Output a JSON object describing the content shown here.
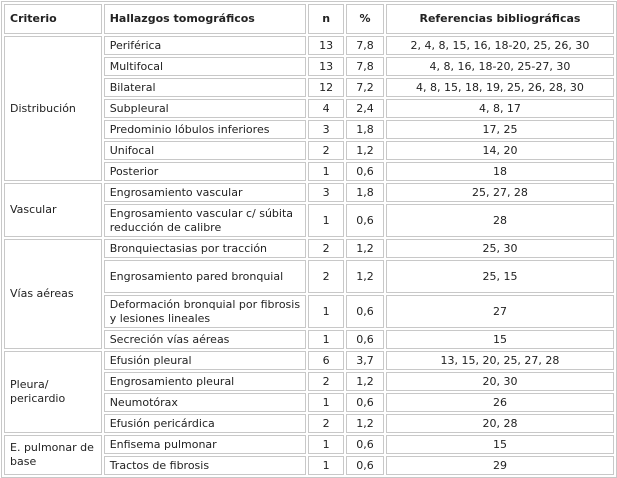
{
  "headers": {
    "criterio": "Criterio",
    "hallazgos": "Hallazgos tomográficos",
    "n": "n",
    "pct": "%",
    "refs": "Referencias bibliográficas"
  },
  "groups": [
    {
      "criterio": "Distribución",
      "rows": [
        {
          "hallazgo": "Periférica",
          "n": "13",
          "pct": "7,8",
          "refs": "2, 4, 8, 15, 16, 18-20, 25, 26, 30"
        },
        {
          "hallazgo": "Multifocal",
          "n": "13",
          "pct": "7,8",
          "refs": "4, 8, 16, 18-20, 25-27, 30"
        },
        {
          "hallazgo": "Bilateral",
          "n": "12",
          "pct": "7,2",
          "refs": "4, 8, 15, 18, 19, 25, 26, 28, 30"
        },
        {
          "hallazgo": "Subpleural",
          "n": "4",
          "pct": "2,4",
          "refs": "4, 8, 17"
        },
        {
          "hallazgo": "Predominio lóbulos inferiores",
          "n": "3",
          "pct": "1,8",
          "refs": "17, 25"
        },
        {
          "hallazgo": "Unifocal",
          "n": "2",
          "pct": "1,2",
          "refs": "14, 20"
        },
        {
          "hallazgo": "Posterior",
          "n": "1",
          "pct": "0,6",
          "refs": "18"
        }
      ]
    },
    {
      "criterio": "Vascular",
      "rows": [
        {
          "hallazgo": "Engrosamiento vascular",
          "n": "3",
          "pct": "1,8",
          "refs": "25, 27, 28"
        },
        {
          "hallazgo": "Engrosamiento vascular c/ súbita reducción de calibre",
          "n": "1",
          "pct": "0,6",
          "refs": "28",
          "two": true
        }
      ]
    },
    {
      "criterio": "Vías aéreas",
      "rows": [
        {
          "hallazgo": "Bronquiectasias por tracción",
          "n": "2",
          "pct": "1,2",
          "refs": "25, 30"
        },
        {
          "hallazgo": "Engrosamiento pared bronquial",
          "n": "2",
          "pct": "1,2",
          "refs": "25, 15",
          "two": true
        },
        {
          "hallazgo": "Deformación bronquial por fibrosis y lesiones lineales",
          "n": "1",
          "pct": "0,6",
          "refs": "27",
          "two": true
        },
        {
          "hallazgo": "Secreción vías aéreas",
          "n": "1",
          "pct": "0,6",
          "refs": "15"
        }
      ]
    },
    {
      "criterio": "Pleura/ pericardio",
      "rows": [
        {
          "hallazgo": "Efusión pleural",
          "n": "6",
          "pct": "3,7",
          "refs": "13, 15, 20, 25, 27, 28"
        },
        {
          "hallazgo": "Engrosamiento pleural",
          "n": "2",
          "pct": "1,2",
          "refs": "20, 30"
        },
        {
          "hallazgo": "Neumotórax",
          "n": "1",
          "pct": "0,6",
          "refs": "26"
        },
        {
          "hallazgo": "Efusión pericárdica",
          "n": "2",
          "pct": "1,2",
          "refs": "20, 28"
        }
      ]
    },
    {
      "criterio": "E. pulmonar de base",
      "rows": [
        {
          "hallazgo": "Enfisema pulmonar",
          "n": "1",
          "pct": "0,6",
          "refs": "15"
        },
        {
          "hallazgo": "Tractos de fibrosis",
          "n": "1",
          "pct": "0,6",
          "refs": "29"
        }
      ]
    }
  ]
}
